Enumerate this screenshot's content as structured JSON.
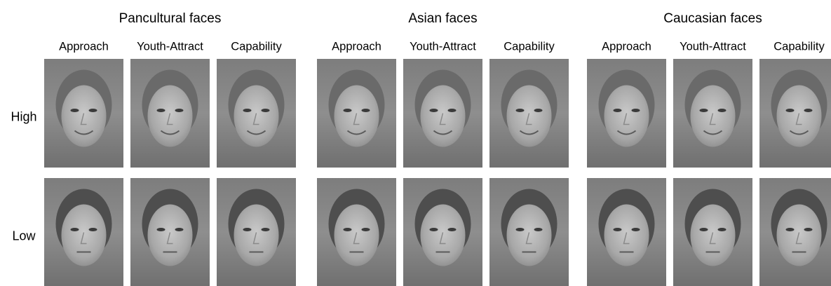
{
  "groups": [
    {
      "title": "Pancultural faces",
      "columns": [
        "Approach",
        "Youth-Attract",
        "Capability"
      ]
    },
    {
      "title": "Asian faces",
      "columns": [
        "Approach",
        "Youth-Attract",
        "Capability"
      ]
    },
    {
      "title": "Caucasian faces",
      "columns": [
        "Approach",
        "Youth-Attract",
        "Capability"
      ]
    }
  ],
  "rows": [
    "High",
    "Low"
  ]
}
